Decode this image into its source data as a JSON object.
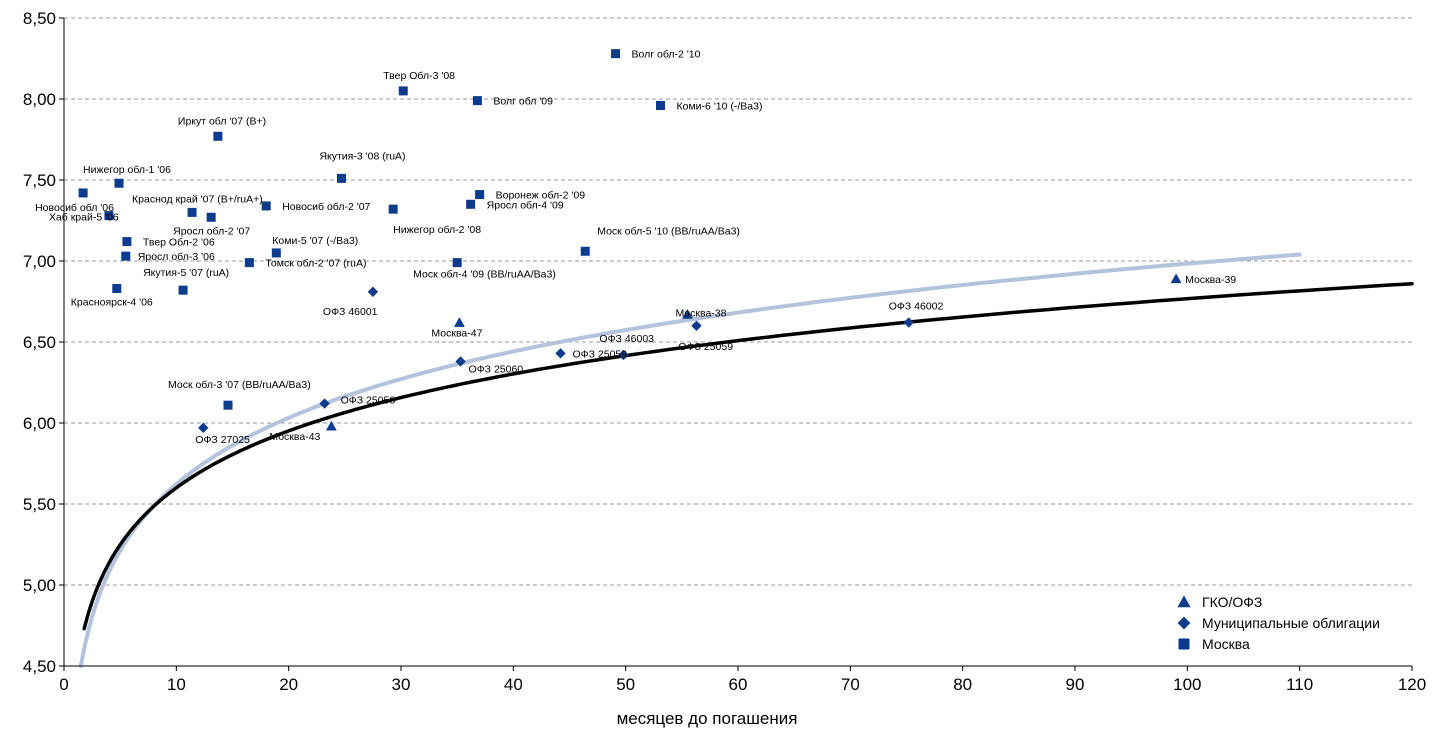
{
  "chart_data": {
    "type": "scatter",
    "xlabel": "месяцев до погашения",
    "ylabel": "",
    "xlim": [
      0,
      120
    ],
    "ylim": [
      4.5,
      8.5
    ],
    "x_ticks": [
      0,
      10,
      20,
      30,
      40,
      50,
      60,
      70,
      80,
      90,
      100,
      110,
      120
    ],
    "y_ticks": [
      "4,50",
      "5,00",
      "5,50",
      "6,00",
      "6,50",
      "7,00",
      "7,50",
      "8,00",
      "8,50"
    ],
    "grid": "horizontal-dashed",
    "legend_position": "bottom-right",
    "colors": {
      "marker": "#0d3b8e",
      "curve_dark": "#000000",
      "curve_light": "#b4c3dc"
    },
    "series": [
      {
        "name": "ГКО/ОФЗ",
        "marker": "triangle",
        "points": [
          {
            "label": "Москва-47",
            "x": 35.2,
            "y": 6.62
          },
          {
            "label": "Москва-43",
            "x": 23.8,
            "y": 5.98
          },
          {
            "label": "Москва-38",
            "x": 55.5,
            "y": 6.67
          },
          {
            "label": "Москва-39",
            "x": 99.0,
            "y": 6.89
          }
        ]
      },
      {
        "name": "Муниципальные облигации",
        "marker": "diamond",
        "points": [
          {
            "label": "ОФЗ 46001",
            "x": 27.5,
            "y": 6.81
          },
          {
            "label": "ОФЗ 25060",
            "x": 35.3,
            "y": 6.38
          },
          {
            "label": "ОФЗ 25058",
            "x": 23.2,
            "y": 6.12
          },
          {
            "label": "ОФЗ 27025",
            "x": 12.4,
            "y": 5.97
          },
          {
            "label": "ОФЗ 25059",
            "x": 44.2,
            "y": 6.43
          },
          {
            "label": "ОФЗ 46003",
            "x": 49.8,
            "y": 6.42
          },
          {
            "label": "ОФЗ 46002",
            "x": 75.2,
            "y": 6.62
          },
          {
            "label": "ОФЗ 25059",
            "x": 56.3,
            "y": 6.6
          }
        ]
      },
      {
        "name": "Москва",
        "marker": "square",
        "points": [
          {
            "label": "Волг обл-2 '10",
            "x": 49.1,
            "y": 8.28
          },
          {
            "label": "Твер Обл-3 '08",
            "x": 30.2,
            "y": 8.05
          },
          {
            "label": "Волг обл '09",
            "x": 36.8,
            "y": 7.99
          },
          {
            "label": "Коми-6 '10 (-/Ba3)",
            "x": 53.1,
            "y": 7.96
          },
          {
            "label": "Иркут обл '07 (B+)",
            "x": 13.7,
            "y": 7.77
          },
          {
            "label": "Якутия-3 '08 (ruA)",
            "x": 24.7,
            "y": 7.51
          },
          {
            "label": "Нижегор обл-1 '06",
            "x": 4.9,
            "y": 7.48
          },
          {
            "label": "Новосиб обл '06",
            "x": 1.7,
            "y": 7.42
          },
          {
            "label": "Воронеж обл-2 '09",
            "x": 37.0,
            "y": 7.41
          },
          {
            "label": "Краснод край '07 (B+/ruA+)",
            "x": 11.4,
            "y": 7.3
          },
          {
            "label": "Новосиб обл-2 '07",
            "x": 18.0,
            "y": 7.34
          },
          {
            "label": "Яросл обл-4 '09",
            "x": 36.2,
            "y": 7.35
          },
          {
            "label": "Нижегор обл-2 '08",
            "x": 29.3,
            "y": 7.32
          },
          {
            "label": "Хаб край-5 '06",
            "x": 4.0,
            "y": 7.28
          },
          {
            "label": "Яросл обл-2 '07",
            "x": 13.1,
            "y": 7.27
          },
          {
            "label": "Твер Обл-2 '06",
            "x": 5.6,
            "y": 7.12
          },
          {
            "label": "Коми-5 '07 (-/Ba3)",
            "x": 18.9,
            "y": 7.05
          },
          {
            "label": "Моск обл-5 '10 (BB/ruAA/Ba3)",
            "x": 46.4,
            "y": 7.06
          },
          {
            "label": "Яросл обл-3 '06",
            "x": 5.5,
            "y": 7.03
          },
          {
            "label": "Томск обл-2 '07 (ruA)",
            "x": 16.5,
            "y": 6.99
          },
          {
            "label": "Моск обл-4 '09 (BB/ruAA/Ba3)",
            "x": 35.0,
            "y": 6.99
          },
          {
            "label": "Якутия-5 '07 (ruA)",
            "x": 10.6,
            "y": 6.82
          },
          {
            "label": "Красноярск-4 '06",
            "x": 4.7,
            "y": 6.83
          },
          {
            "label": "Моск обл-3 '07 (BB/ruAA/Ba3)",
            "x": 14.6,
            "y": 6.11
          }
        ]
      }
    ],
    "curves": [
      {
        "style": "light",
        "from": [
          1.5,
          4.5
        ],
        "to": [
          110,
          7.04
        ]
      },
      {
        "style": "dark",
        "from": [
          1.8,
          4.73
        ],
        "to": [
          120,
          6.86
        ]
      }
    ]
  }
}
